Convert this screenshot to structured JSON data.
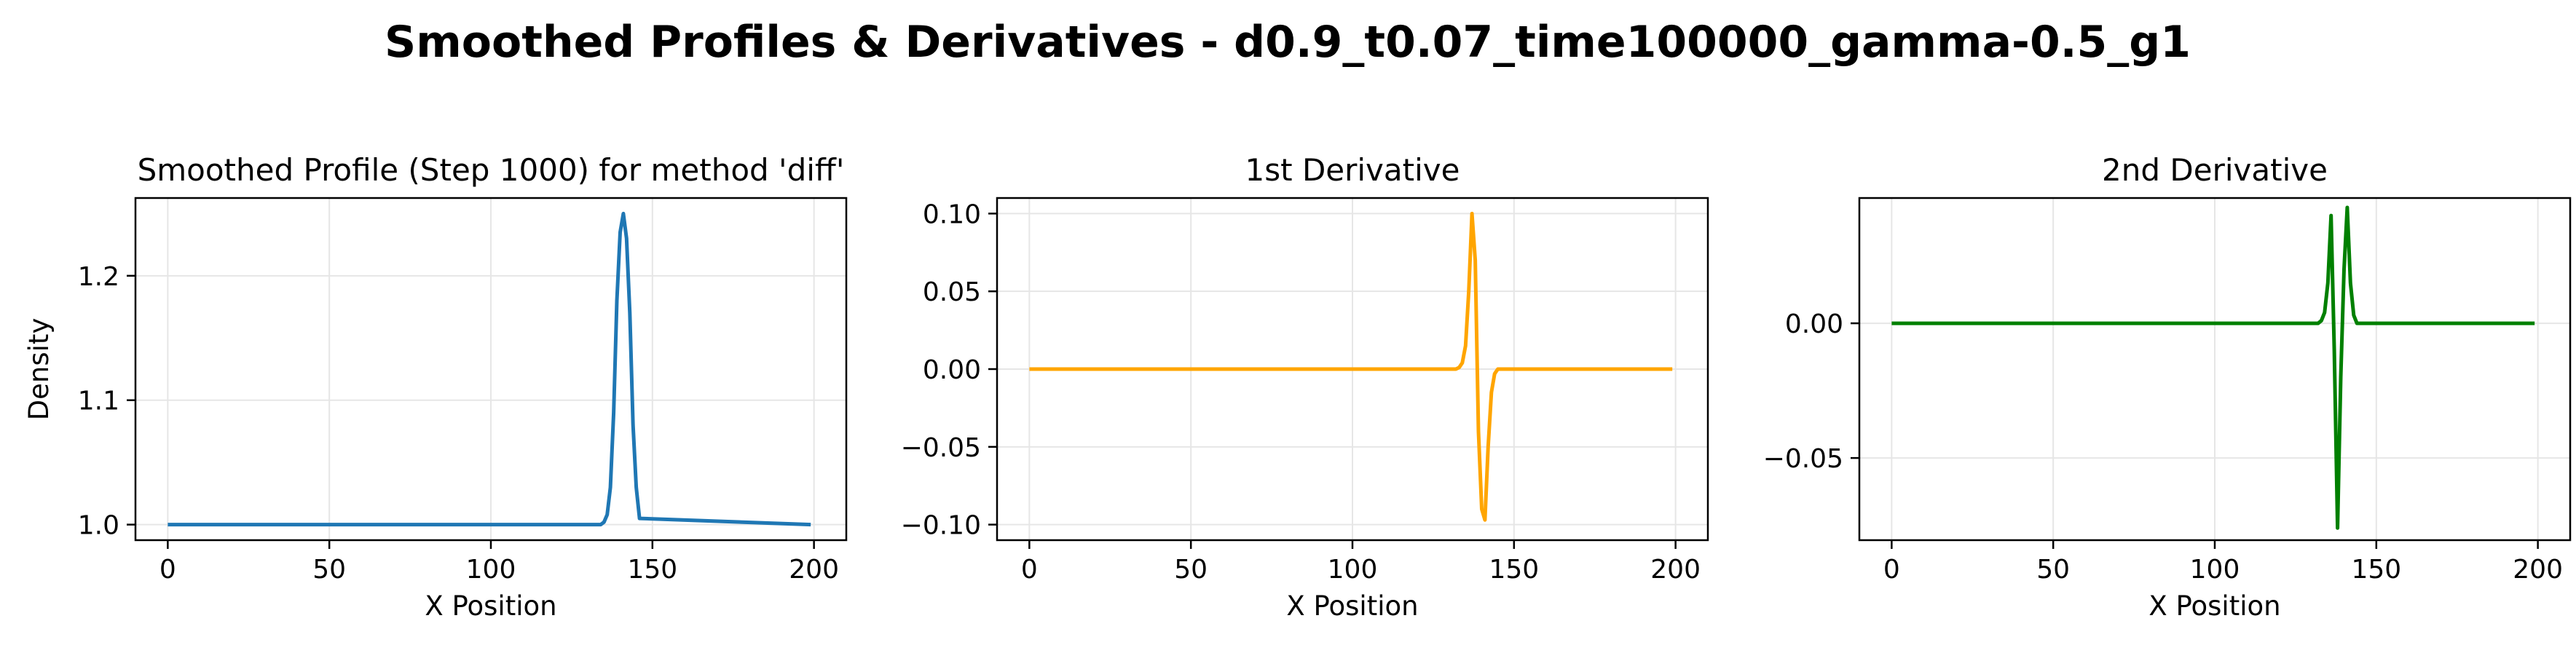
{
  "figure": {
    "title": "Smoothed Profiles & Derivatives - d0.9_t0.07_time100000_gamma-0.5_g1"
  },
  "chart_data": [
    {
      "type": "line",
      "title": "Smoothed Profile (Step 1000) for method 'diff'",
      "xlabel": "X Position",
      "ylabel": "Density",
      "xlim": [
        -10,
        210
      ],
      "ylim": [
        0.9875,
        1.2625
      ],
      "xticks": [
        0,
        50,
        100,
        150,
        200
      ],
      "xtick_labels": [
        "0",
        "50",
        "100",
        "150",
        "200"
      ],
      "yticks": [
        1.0,
        1.1,
        1.2
      ],
      "ytick_labels": [
        "1.0",
        "1.1",
        "1.2"
      ],
      "grid": true,
      "color": "#1f77b4",
      "series": [
        {
          "x": [
            0,
            133,
            134,
            135,
            136,
            137,
            138,
            139,
            140,
            141,
            142,
            143,
            144,
            145,
            146,
            199
          ],
          "y": [
            1.0,
            1.0,
            1.0,
            1.002,
            1.008,
            1.03,
            1.09,
            1.18,
            1.235,
            1.25,
            1.23,
            1.17,
            1.08,
            1.03,
            1.005,
            1.0
          ]
        }
      ]
    },
    {
      "type": "line",
      "title": "1st Derivative",
      "xlabel": "X Position",
      "ylabel": "",
      "xlim": [
        -10,
        210
      ],
      "ylim": [
        -0.11,
        0.11
      ],
      "xticks": [
        0,
        50,
        100,
        150,
        200
      ],
      "xtick_labels": [
        "0",
        "50",
        "100",
        "150",
        "200"
      ],
      "yticks": [
        -0.1,
        -0.05,
        0.0,
        0.05,
        0.1
      ],
      "ytick_labels": [
        "−0.10",
        "−0.05",
        "0.00",
        "0.05",
        "0.10"
      ],
      "grid": true,
      "color": "#ffa500",
      "series": [
        {
          "x": [
            0,
            132,
            133,
            134,
            135,
            136,
            137,
            138,
            139,
            140,
            141,
            142,
            143,
            144,
            145,
            146,
            199
          ],
          "y": [
            0.0,
            0.0,
            0.001,
            0.004,
            0.015,
            0.05,
            0.1,
            0.07,
            -0.04,
            -0.09,
            -0.097,
            -0.05,
            -0.015,
            -0.003,
            0.0,
            0.0,
            0.0
          ]
        }
      ]
    },
    {
      "type": "line",
      "title": "2nd Derivative",
      "xlabel": "X Position",
      "ylabel": "",
      "xlim": [
        -10,
        210
      ],
      "ylim": [
        -0.0805,
        0.0465
      ],
      "xticks": [
        0,
        50,
        100,
        150,
        200
      ],
      "xtick_labels": [
        "0",
        "50",
        "100",
        "150",
        "200"
      ],
      "yticks": [
        -0.05,
        0.0
      ],
      "ytick_labels": [
        "−0.05",
        "0.00"
      ],
      "grid": true,
      "color": "#008000",
      "series": [
        {
          "x": [
            0,
            132,
            133,
            134,
            135,
            136,
            137,
            138,
            139,
            140,
            141,
            142,
            143,
            144,
            145,
            199
          ],
          "y": [
            0.0,
            0.0,
            0.001,
            0.004,
            0.015,
            0.04,
            -0.01,
            -0.076,
            -0.02,
            0.02,
            0.043,
            0.015,
            0.003,
            0.0,
            0.0,
            0.0
          ]
        }
      ]
    }
  ]
}
